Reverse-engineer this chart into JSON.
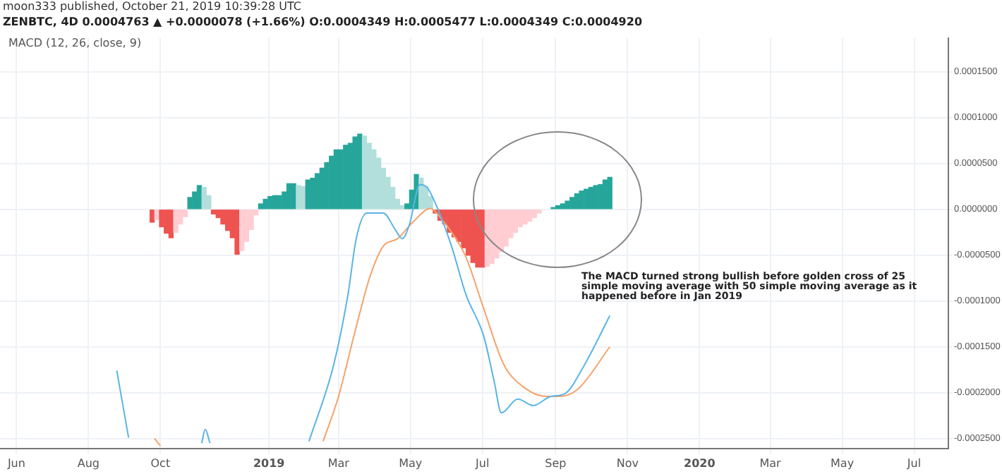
{
  "chart_data": {
    "type": "bar",
    "title": "MACD (12, 26, close, 9)",
    "subtitle": "ZENBTC, 4D 0.0004763 ▲ +0.0000078 (+1.66%) O:0.0004349 H:0.0005477 L:0.0004349 C:0.0004920",
    "annotations": [
      "moon333 published, October 21, 2019 10:39:28 UTC",
      "The MACD turned strong bullish before golden cross of 25 simple moving average with 50 simple moving average as it happened before in Jan 2019"
    ],
    "x": [
      "2018-09-24",
      "2018-09-28",
      "2018-10-02",
      "2018-10-06",
      "2018-10-10",
      "2018-10-14",
      "2018-10-18",
      "2018-10-22",
      "2018-10-26",
      "2018-10-30",
      "2018-11-03",
      "2018-11-07",
      "2018-11-11",
      "2018-11-15",
      "2018-11-19",
      "2018-11-23",
      "2018-11-27",
      "2018-12-01",
      "2018-12-05",
      "2018-12-09",
      "2018-12-13",
      "2018-12-17",
      "2018-12-21",
      "2018-12-25",
      "2018-12-29",
      "2019-01-02",
      "2019-01-06",
      "2019-01-10",
      "2019-01-14",
      "2019-01-18",
      "2019-01-22",
      "2019-01-26",
      "2019-01-30",
      "2019-02-03",
      "2019-02-07",
      "2019-02-11",
      "2019-02-15",
      "2019-02-19",
      "2019-02-23",
      "2019-02-27",
      "2019-03-03",
      "2019-03-07",
      "2019-03-11",
      "2019-03-15",
      "2019-03-19",
      "2019-03-23",
      "2019-03-27",
      "2019-03-31",
      "2019-04-04",
      "2019-04-08",
      "2019-04-12",
      "2019-04-16",
      "2019-04-20",
      "2019-04-24",
      "2019-04-28",
      "2019-05-02",
      "2019-05-06",
      "2019-05-10",
      "2019-05-14",
      "2019-05-18",
      "2019-05-22",
      "2019-05-26",
      "2019-05-30",
      "2019-06-03",
      "2019-06-07",
      "2019-06-11",
      "2019-06-15",
      "2019-06-19",
      "2019-06-23",
      "2019-06-27",
      "2019-07-01",
      "2019-07-05",
      "2019-07-09",
      "2019-07-13",
      "2019-07-17",
      "2019-07-21",
      "2019-07-25",
      "2019-07-29",
      "2019-08-02",
      "2019-08-06",
      "2019-08-10",
      "2019-08-14",
      "2019-08-18",
      "2019-08-22",
      "2019-08-26",
      "2019-08-30",
      "2019-09-03",
      "2019-09-07",
      "2019-09-11",
      "2019-09-15",
      "2019-09-19",
      "2019-09-23",
      "2019-09-27",
      "2019-10-01",
      "2019-10-05",
      "2019-10-09",
      "2019-10-13",
      "2019-10-17"
    ],
    "series": [
      {
        "values": [
          -1.4e-05,
          -1.1e-05,
          -1.9e-05,
          -2.6e-05,
          -3.1e-05,
          -2.5e-05,
          -1.6e-05,
          -8e-06,
          1.3e-05,
          1.9e-05,
          2.6e-05,
          2.4e-05,
          1.5e-05,
          -5e-06,
          -9e-06,
          -1.6e-05,
          -2.3e-05,
          -3.1e-05,
          -4.9e-05,
          -4.5e-05,
          -3.5e-05,
          -2.2e-05,
          -6e-06,
          6e-06,
          1.1e-05,
          1.4e-05,
          1.5e-05,
          1.5e-05,
          1.9e-05,
          2.8e-05,
          2.8e-05,
          2.6e-05,
          2.5e-05,
          3.2e-05,
          3.4e-05,
          3.9e-05,
          4.5e-05,
          5.1e-05,
          5.8e-05,
          6.5e-05,
          6.5e-05,
          7e-05,
          7.2e-05,
          7.9e-05,
          8.2e-05,
          8e-05,
          7.2e-05,
          6.5e-05,
          5.6e-05,
          4.5e-05,
          3.5e-05,
          2.4e-05,
          1.1e-05,
          4e-06,
          6e-06,
          2.1e-05,
          3.8e-05,
          3.4e-05,
          2.5e-05,
          1.4e-05,
          -4e-06,
          -1.2e-05,
          -1.6e-05,
          -2.5e-05,
          -3e-05,
          -3.5e-05,
          -4.2e-05,
          -5e-05,
          -5.8e-05,
          -6.3e-05,
          -6.3e-05,
          -6.2e-05,
          -5.9e-05,
          -5.3e-05,
          -4.6e-05,
          -4e-05,
          -3.1e-05,
          -2.5e-05,
          -1.9e-05,
          -1.6e-05,
          -1.3e-05,
          -9e-06,
          -4e-06,
          null,
          null,
          2e-06,
          4e-06,
          6e-06,
          9e-06,
          1.3e-05,
          1.7e-05,
          2e-05,
          2.2e-05,
          2.4e-05,
          2.6e-05,
          2.7e-05,
          3.2e-05,
          3.5e-05
        ],
        "colors": [
          "#ef5350",
          "#ffcdd2",
          "#ef5350",
          "#ef5350",
          "#ef5350",
          "#ffcdd2",
          "#ffcdd2",
          "#ffcdd2",
          "#26a69a",
          "#26a69a",
          "#26a69a",
          "#b2dfdb",
          "#b2dfdb",
          "#ef5350",
          "#ef5350",
          "#ef5350",
          "#ef5350",
          "#ef5350",
          "#ef5350",
          "#ffcdd2",
          "#ffcdd2",
          "#ffcdd2",
          "#ffcdd2",
          "#26a69a",
          "#26a69a",
          "#26a69a",
          "#26a69a",
          "#26a69a",
          "#26a69a",
          "#26a69a",
          "#26a69a",
          "#b2dfdb",
          "#b2dfdb",
          "#26a69a",
          "#26a69a",
          "#26a69a",
          "#26a69a",
          "#26a69a",
          "#26a69a",
          "#26a69a",
          "#26a69a",
          "#26a69a",
          "#26a69a",
          "#26a69a",
          "#26a69a",
          "#b2dfdb",
          "#b2dfdb",
          "#b2dfdb",
          "#b2dfdb",
          "#b2dfdb",
          "#b2dfdb",
          "#b2dfdb",
          "#b2dfdb",
          "#b2dfdb",
          "#26a69a",
          "#26a69a",
          "#26a69a",
          "#b2dfdb",
          "#b2dfdb",
          "#b2dfdb",
          "#ef5350",
          "#ef5350",
          "#ef5350",
          "#ef5350",
          "#ef5350",
          "#ef5350",
          "#ef5350",
          "#ef5350",
          "#ef5350",
          "#ef5350",
          "#ef5350",
          "#ffcdd2",
          "#ffcdd2",
          "#ffcdd2",
          "#ffcdd2",
          "#ffcdd2",
          "#ffcdd2",
          "#ffcdd2",
          "#ffcdd2",
          "#ffcdd2",
          "#ffcdd2",
          "#ffcdd2",
          "#ffcdd2",
          "#ffcdd2",
          "#26a69a",
          "#26a69a",
          "#26a69a",
          "#26a69a",
          "#26a69a",
          "#26a69a",
          "#26a69a",
          "#26a69a",
          "#26a69a",
          "#26a69a",
          "#26a69a",
          "#26a69a",
          "#26a69a",
          "#26a69a"
        ]
      },
      {
        "type": "line",
        "color": "#5ab4e5",
        "x": [
          "2018-08-25",
          "2018-09-04",
          "2018-10-01",
          "2018-11-05",
          "2018-11-08",
          "2018-11-12",
          "2019-01-01",
          "2019-02-04",
          "2019-02-25",
          "2019-03-09",
          "2019-03-16",
          "2019-03-25",
          "2019-04-08",
          "2019-04-18",
          "2019-04-24",
          "2019-04-30",
          "2019-05-09",
          "2019-05-15",
          "2019-05-24",
          "2019-06-05",
          "2019-06-17",
          "2019-07-02",
          "2019-07-11",
          "2019-07-17",
          "2019-07-31",
          "2019-08-13",
          "2019-08-28",
          "2019-09-09",
          "2019-09-24",
          "2019-10-17"
        ],
        "values": [
          -0.000176,
          -0.000249,
          null,
          -0.000255,
          -0.00024,
          -0.000255,
          null,
          -0.000253,
          -0.000169,
          -9.3e-05,
          -3.2e-05,
          -4e-06,
          -4e-06,
          -2.2e-05,
          -3.2e-05,
          -1.7e-05,
          2.7e-05,
          2.4e-05,
          1e-06,
          -4.1e-05,
          -9.3e-05,
          -0.000138,
          -0.000188,
          -0.000222,
          -0.000207,
          -0.000214,
          -0.000204,
          -0.000201,
          -0.000173,
          -0.000116
        ]
      },
      {
        "type": "line",
        "color": "#f4a36c",
        "x": [
          "2018-09-26",
          "2018-10-01",
          "2019-01-01",
          "2019-02-16",
          "2019-03-01",
          "2019-03-16",
          "2019-03-28",
          "2019-04-08",
          "2019-04-20",
          "2019-05-03",
          "2019-05-18",
          "2019-05-27",
          "2019-06-07",
          "2019-06-17",
          "2019-07-02",
          "2019-07-19",
          "2019-08-04",
          "2019-08-24",
          "2019-09-05",
          "2019-09-20",
          "2019-10-17"
        ],
        "values": [
          -0.00025,
          -0.000258,
          null,
          -0.000253,
          -0.000204,
          -0.000128,
          -7.2e-05,
          -4e-05,
          -3.2e-05,
          -1.4e-05,
          1e-06,
          -1e-05,
          -2.9e-05,
          -5.2e-05,
          -0.000108,
          -0.000169,
          -0.000193,
          -0.000204,
          -0.000204,
          -0.000196,
          -0.00015
        ]
      }
    ],
    "xlim": [
      "2018-05-18",
      "2020-07-30"
    ],
    "xticks": [
      {
        "value": "2018-06",
        "label": "Jun"
      },
      {
        "value": "2018-08",
        "label": "Aug"
      },
      {
        "value": "2018-10",
        "label": "Oct"
      },
      {
        "value": "2019-01",
        "label": "2019"
      },
      {
        "value": "2019-03",
        "label": "Mar"
      },
      {
        "value": "2019-05",
        "label": "May"
      },
      {
        "value": "2019-07",
        "label": "Jul"
      },
      {
        "value": "2019-09",
        "label": "Sep"
      },
      {
        "value": "2019-11",
        "label": "Nov"
      },
      {
        "value": "2020-01",
        "label": "2020"
      },
      {
        "value": "2020-03",
        "label": "Mar"
      },
      {
        "value": "2020-05",
        "label": "May"
      },
      {
        "value": "2020-07",
        "label": "Jul"
      }
    ],
    "ylim": [
      -0.000261,
      0.000187
    ],
    "yticks": [
      {
        "value": 0.00015,
        "label": "0.0001500"
      },
      {
        "value": 0.0001,
        "label": "0.0001000"
      },
      {
        "value": 5e-05,
        "label": "0.0000500"
      },
      {
        "value": 0,
        "label": "0.0000000"
      },
      {
        "value": -5e-05,
        "label": "-0.0000500"
      },
      {
        "value": -0.0001,
        "label": "-0.0001000"
      },
      {
        "value": -0.00015,
        "label": "-0.0001500"
      },
      {
        "value": -0.0002,
        "label": "-0.0002000"
      },
      {
        "value": -0.00025,
        "label": "-0.0002500"
      }
    ],
    "grid": true,
    "legend": false
  }
}
